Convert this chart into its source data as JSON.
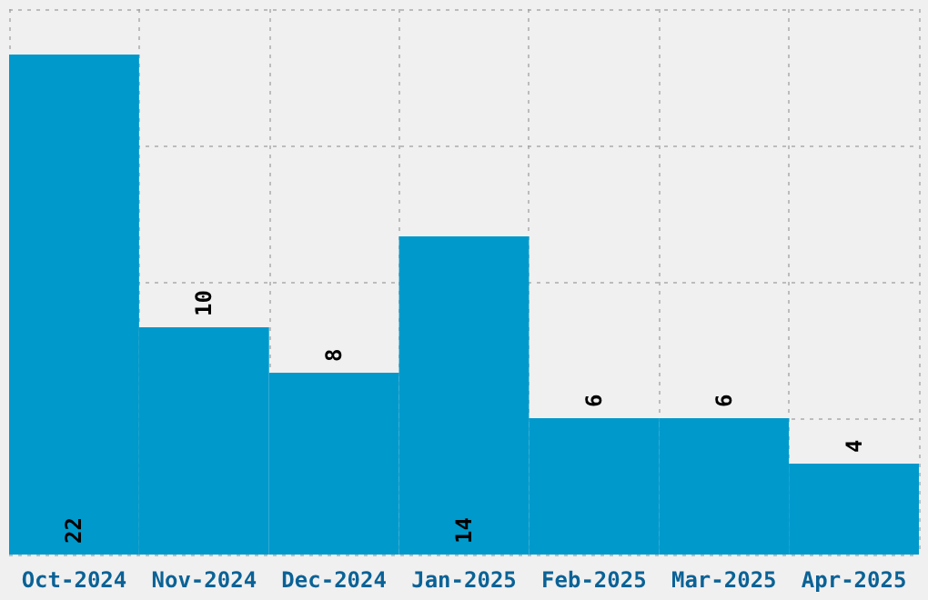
{
  "chart_data": {
    "type": "bar",
    "categories": [
      "Oct-2024",
      "Nov-2024",
      "Dec-2024",
      "Jan-2025",
      "Feb-2025",
      "Mar-2025",
      "Apr-2025"
    ],
    "values": [
      22,
      10,
      8,
      14,
      6,
      6,
      4
    ],
    "color": "#0099cc",
    "grid": true,
    "tick_labels": "x",
    "data_labels": true
  }
}
